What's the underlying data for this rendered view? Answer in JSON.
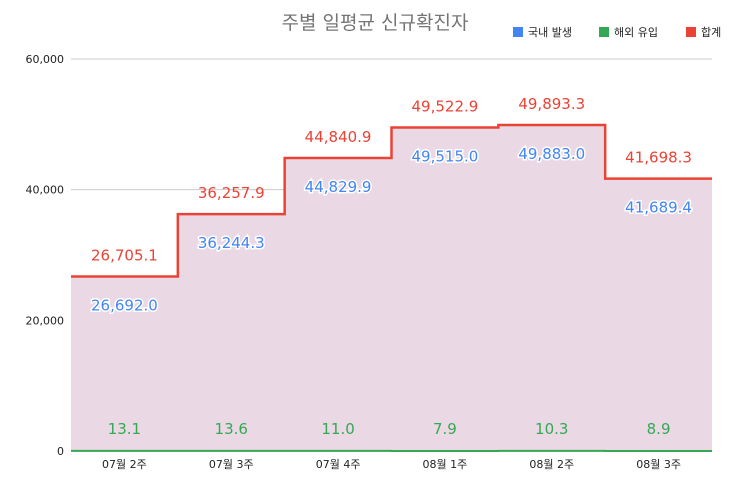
{
  "chart_data": {
    "type": "area",
    "title": "주별 일평균 신규확진자",
    "categories": [
      "07월 2주",
      "07월 3주",
      "07월 4주",
      "08월 1주",
      "08월 2주",
      "08월 3주"
    ],
    "series": [
      {
        "name": "국내 발생",
        "values": [
          26692.0,
          36244.3,
          44829.9,
          49515.0,
          49883.0,
          41689.4
        ],
        "labels": [
          "26,692.0",
          "36,244.3",
          "44,829.9",
          "49,515.0",
          "49,883.0",
          "41,689.4"
        ],
        "color": "#4285f4"
      },
      {
        "name": "해외 유입",
        "values": [
          13.1,
          13.6,
          11.0,
          7.9,
          10.3,
          8.9
        ],
        "labels": [
          "13.1",
          "13.6",
          "11.0",
          "7.9",
          "10.3",
          "8.9"
        ],
        "color": "#34a853"
      },
      {
        "name": "합계",
        "values": [
          26705.1,
          36257.9,
          44840.9,
          49522.9,
          49893.3,
          41698.3
        ],
        "labels": [
          "26,705.1",
          "36,257.9",
          "44,840.9",
          "49,522.9",
          "49,893.3",
          "41,698.3"
        ],
        "color": "#ea4335"
      }
    ],
    "y_ticks": [
      "0",
      "20,000",
      "40,000",
      "60,000"
    ],
    "ylim": [
      0,
      60000
    ],
    "grid": true,
    "legend": "top-right",
    "area_color": "#ead9e5"
  }
}
